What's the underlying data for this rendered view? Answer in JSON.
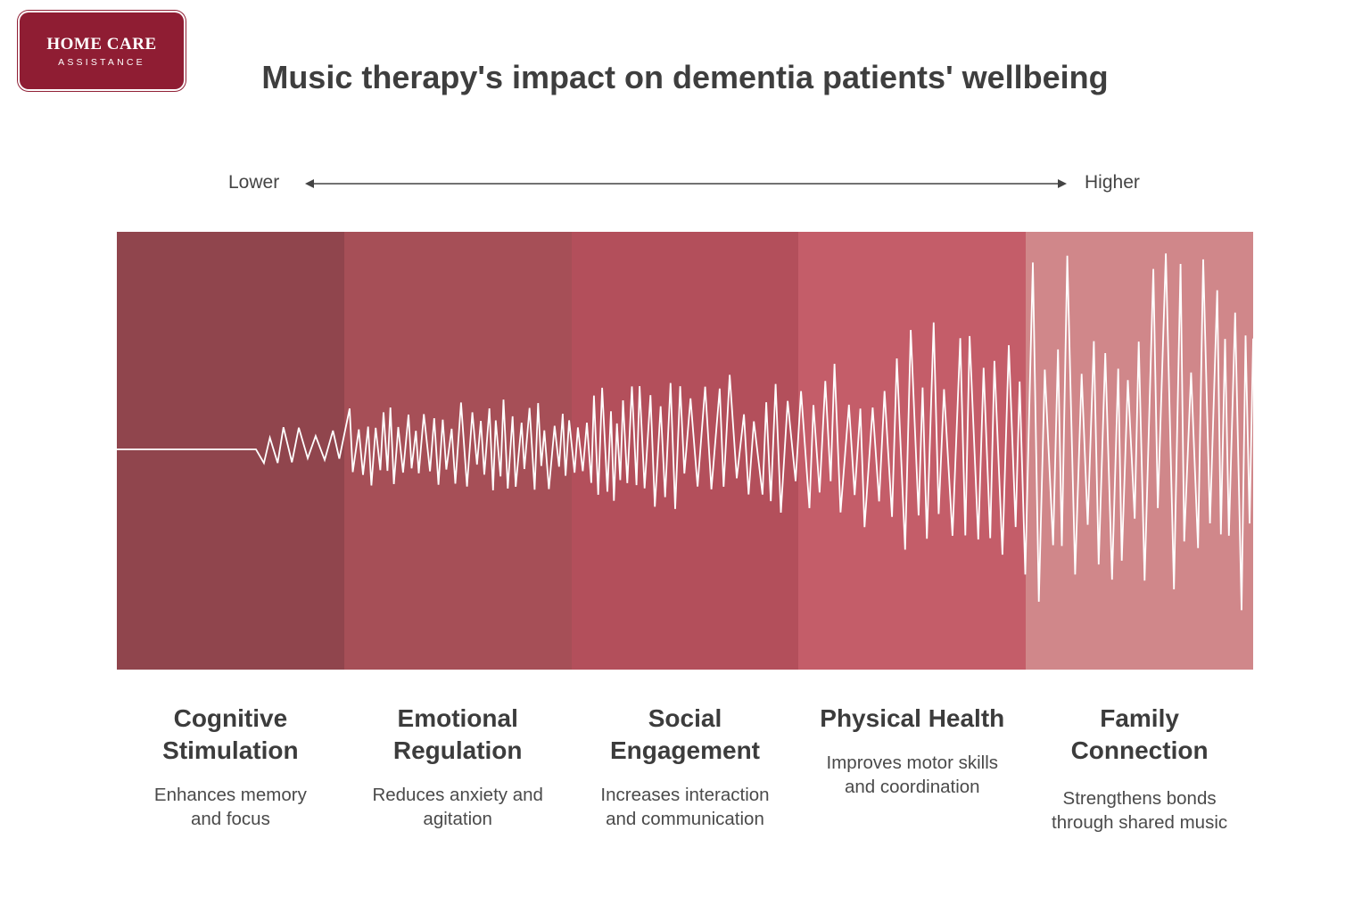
{
  "logo": {
    "line1": "HOME CARE",
    "line2": "ASSISTANCE"
  },
  "title": "Music therapy's impact on dementia patients' wellbeing",
  "scale": {
    "low": "Lower",
    "high": "Higher"
  },
  "colors": {
    "band_1": "#90454d",
    "band_2": "#a64f57",
    "band_3": "#b34f5b",
    "band_4": "#c45d69",
    "band_5": "#d0878a",
    "wave": "#ffffff",
    "logo_bg": "#8f1d33"
  },
  "categories": [
    {
      "title": "Cognitive Stimulation",
      "description": "Enhances memory and focus"
    },
    {
      "title": "Emotional Regulation",
      "description": "Reduces anxiety and agitation"
    },
    {
      "title": "Social Engagement",
      "description": "Increases interaction and communication"
    },
    {
      "title": "Physical Health",
      "description": "Improves motor skills and coordination"
    },
    {
      "title": "Family Connection",
      "description": "Strengthens bonds through shared music"
    }
  ],
  "wave": {
    "relative_amplitude_by_stage": [
      0.05,
      0.2,
      0.3,
      0.45,
      0.95
    ]
  }
}
